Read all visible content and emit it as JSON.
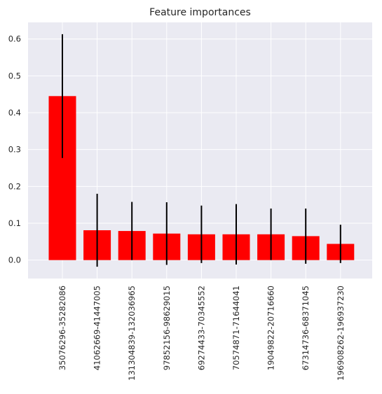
{
  "chart_data": {
    "type": "bar",
    "title": "Feature importances",
    "xlabel": "",
    "ylabel": "",
    "categories": [
      "35076296-35282086",
      "41062669-41447005",
      "131304839-132036965",
      "97852156-98629015",
      "69274433-70345552",
      "70574871-71644041",
      "19049822-20716660",
      "67314736-68371045",
      "196908262-196937230"
    ],
    "values": [
      0.445,
      0.081,
      0.079,
      0.072,
      0.07,
      0.07,
      0.07,
      0.065,
      0.044
    ],
    "errors": [
      0.168,
      0.099,
      0.079,
      0.085,
      0.078,
      0.082,
      0.07,
      0.075,
      0.052
    ],
    "ylim": [
      -0.05,
      0.645
    ],
    "yticks": [
      0.0,
      0.1,
      0.2,
      0.3,
      0.4,
      0.5,
      0.6
    ],
    "ytick_labels": [
      "0.0",
      "0.1",
      "0.2",
      "0.3",
      "0.4",
      "0.5",
      "0.6"
    ],
    "grid": true,
    "bar_color": "#ff0000",
    "error_color": "#000000",
    "background_color": "#eaeaf2",
    "grid_color": "#ffffff"
  }
}
